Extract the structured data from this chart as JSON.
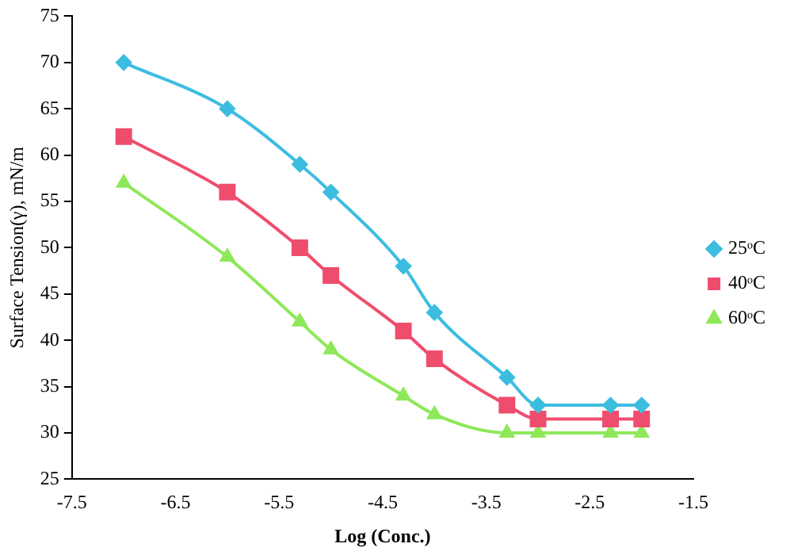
{
  "chart_data": {
    "type": "line",
    "xlabel": "Log (Conc.)",
    "ylabel": "Surface Tension(γ), mN/m",
    "x": [
      -7.0,
      -6.0,
      -5.3,
      -5.0,
      -4.3,
      -4.0,
      -3.3,
      -3.0,
      -2.3,
      -2.0
    ],
    "series": [
      {
        "name": "25ᵒC",
        "color": "#3cbde0",
        "marker": "diamond",
        "values": [
          70,
          65,
          59,
          56,
          48,
          43,
          36,
          33,
          33,
          33
        ]
      },
      {
        "name": "40ᵒC",
        "color": "#ef4d6e",
        "marker": "square",
        "values": [
          62,
          56,
          50,
          47,
          41,
          38,
          33,
          31.5,
          31.5,
          31.5
        ]
      },
      {
        "name": "60ᵒC",
        "color": "#8ee85a",
        "marker": "triangle",
        "values": [
          57,
          49,
          42,
          39,
          34,
          32,
          30,
          30,
          30,
          30
        ]
      }
    ],
    "xlim": [
      -7.5,
      -1.5
    ],
    "xticks": [
      -7.5,
      -6.5,
      -5.5,
      -4.5,
      -3.5,
      -2.5,
      -1.5
    ],
    "ylim": [
      25,
      75
    ],
    "yticks": [
      25,
      30,
      35,
      40,
      45,
      50,
      55,
      60,
      65,
      70,
      75
    ],
    "grid": false,
    "legend": "right"
  }
}
